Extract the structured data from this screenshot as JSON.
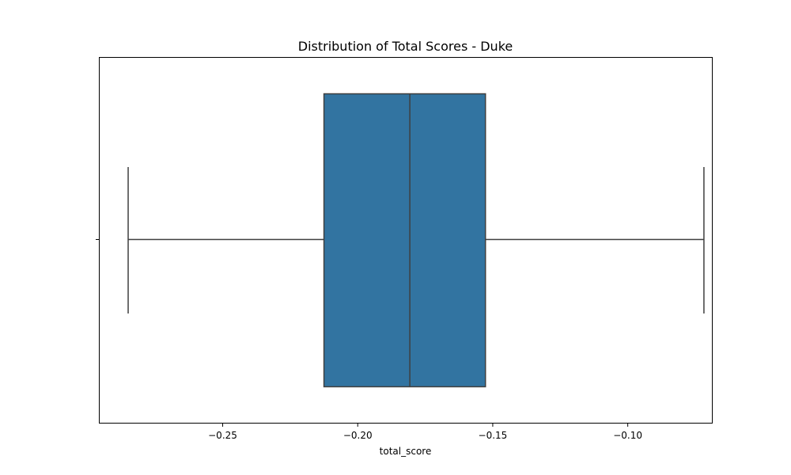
{
  "chart_data": {
    "type": "box",
    "title": "Distribution of Total Scores - Duke",
    "xlabel": "total_score",
    "ylabel": "",
    "orientation": "horizontal",
    "xlim": [
      -0.2957,
      -0.0687
    ],
    "xticks": [
      -0.25,
      -0.2,
      -0.15,
      -0.1
    ],
    "xtick_labels": [
      "−0.25",
      "−0.20",
      "−0.15",
      "−0.10"
    ],
    "grid": false,
    "legend": "none",
    "box": {
      "whisker_low": -0.285,
      "q1": -0.2125,
      "median": -0.1807,
      "q3": -0.1527,
      "whisker_high": -0.0718
    },
    "box_color": "#3274a1",
    "line_color": "#3f3f3f"
  }
}
